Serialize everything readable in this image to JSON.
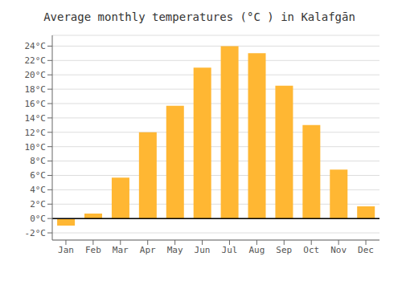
{
  "chart_data": {
    "type": "bar",
    "title": "Average monthly temperatures (°C ) in Kalafgān",
    "categories": [
      "Jan",
      "Feb",
      "Mar",
      "Apr",
      "May",
      "Jun",
      "Jul",
      "Aug",
      "Sep",
      "Oct",
      "Nov",
      "Dec"
    ],
    "values": [
      -1.0,
      0.7,
      5.7,
      12.0,
      15.7,
      21.0,
      24.0,
      23.0,
      18.5,
      13.0,
      6.8,
      1.7
    ],
    "color": "#FFB733",
    "ylim": [
      -3,
      25.5
    ],
    "yticks": [
      {
        "value": -2,
        "label": "-2°C"
      },
      {
        "value": 0,
        "label": "0°C"
      },
      {
        "value": 2,
        "label": "2°C"
      },
      {
        "value": 4,
        "label": "4°C"
      },
      {
        "value": 6,
        "label": "6°C"
      },
      {
        "value": 8,
        "label": "8°C"
      },
      {
        "value": 10,
        "label": "10°C"
      },
      {
        "value": 12,
        "label": "12°C"
      },
      {
        "value": 14,
        "label": "14°C"
      },
      {
        "value": 16,
        "label": "16°C"
      },
      {
        "value": 18,
        "label": "18°C"
      },
      {
        "value": 20,
        "label": "20°C"
      },
      {
        "value": 22,
        "label": "22°C"
      },
      {
        "value": 24,
        "label": "24°C"
      }
    ],
    "grid": true
  }
}
